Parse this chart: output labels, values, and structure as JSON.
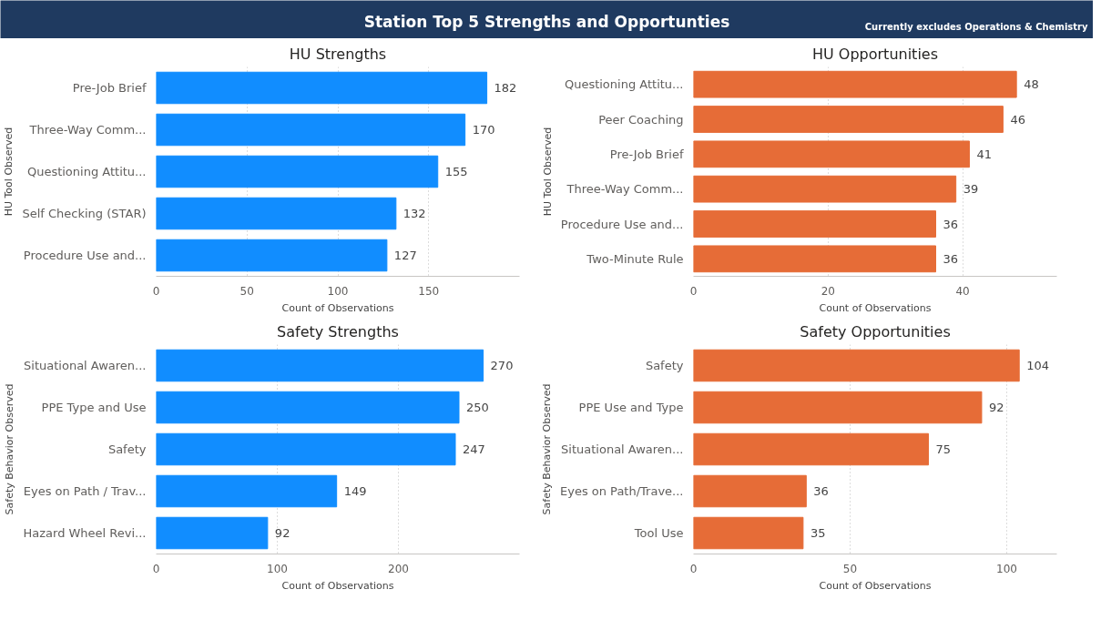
{
  "chart_data": [
    {
      "type": "other",
      "title": "Station Top 5 Strengths and Opportunties",
      "subtitle": "Currently excludes Operations & Chemistry"
    },
    {
      "type": "bar",
      "orientation": "horizontal",
      "title": "HU Strengths",
      "xlabel": "Count of Observations",
      "ylabel": "HU Tool Observed",
      "categories": [
        "Pre-Job Brief",
        "Three-Way Comm...",
        "Questioning Attitu...",
        "Self Checking (STAR)",
        "Procedure Use and..."
      ],
      "values": [
        182,
        170,
        155,
        132,
        127
      ],
      "color": "#118dff",
      "xlim": [
        0,
        200
      ],
      "xticks": [
        0,
        50,
        100,
        150
      ],
      "grid": "x",
      "data_labels": true
    },
    {
      "type": "bar",
      "orientation": "horizontal",
      "title": "HU Opportunities",
      "xlabel": "Count of Observations",
      "ylabel": "HU Tool Observed",
      "categories": [
        "Questioning Attitu...",
        "Peer Coaching",
        "Pre-Job Brief",
        "Three-Way Comm...",
        "Procedure Use and...",
        "Two-Minute Rule"
      ],
      "values": [
        48,
        46,
        41,
        39,
        36,
        36
      ],
      "color": "#e66c37",
      "xlim": [
        0,
        54
      ],
      "xticks": [
        0,
        20,
        40
      ],
      "grid": "x",
      "data_labels": true
    },
    {
      "type": "bar",
      "orientation": "horizontal",
      "title": "Safety Strengths",
      "xlabel": "Count of Observations",
      "ylabel": "Safety Behavior Observed",
      "categories": [
        "Situational Awaren...",
        "PPE Type and Use",
        "Safety",
        "Eyes on Path / Trav...",
        "Hazard Wheel Revi..."
      ],
      "values": [
        270,
        250,
        247,
        149,
        92
      ],
      "color": "#118dff",
      "xlim": [
        0,
        300
      ],
      "xticks": [
        0,
        100,
        200
      ],
      "grid": "x",
      "data_labels": true
    },
    {
      "type": "bar",
      "orientation": "horizontal",
      "title": "Safety Opportunities",
      "xlabel": "Count of Observations",
      "ylabel": "Safety Behavior Observed",
      "categories": [
        "Safety",
        "PPE Use and Type",
        "Situational Awaren...",
        "Eyes on Path/Trave...",
        "Tool Use"
      ],
      "values": [
        104,
        92,
        75,
        36,
        35
      ],
      "color": "#e66c37",
      "xlim": [
        0,
        116
      ],
      "xticks": [
        0,
        50,
        100
      ],
      "grid": "x",
      "data_labels": true
    }
  ]
}
